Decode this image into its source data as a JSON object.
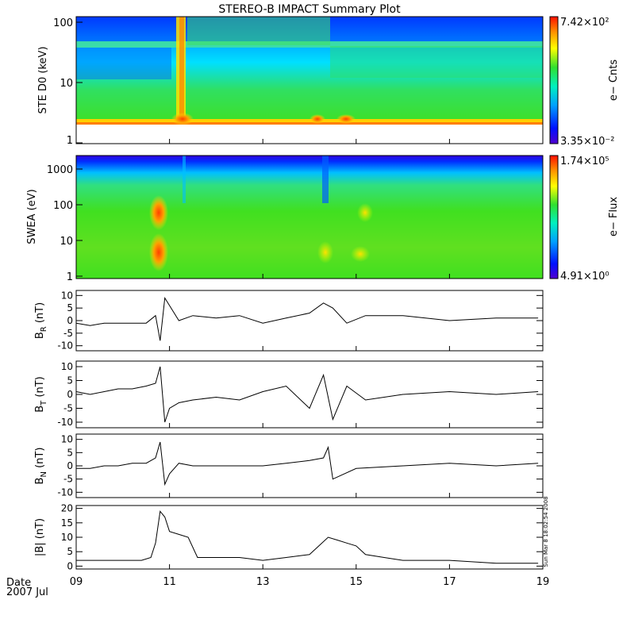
{
  "title": "STEREO-B IMPACT Summary Plot",
  "date_label": "Date",
  "date_sub": "2007 Jul",
  "side_stamp": "Sun Mar  8 18:02:54 2008",
  "chart_data": [
    {
      "type": "heatmap",
      "id": "ste",
      "ylabel": "STE D0 (keV)",
      "ylog": true,
      "ylim": [
        1,
        100
      ],
      "yticks": [
        "1",
        "10",
        "100"
      ],
      "cbar_max": "7.42×10²",
      "cbar_min": "3.35×10⁻²",
      "cbar_label": "e− Cnts"
    },
    {
      "type": "heatmap",
      "id": "swea",
      "ylabel": "SWEA (eV)",
      "ylog": true,
      "ylim": [
        1,
        2000
      ],
      "yticks": [
        "1",
        "10",
        "100",
        "1000"
      ],
      "cbar_max": "1.74×10⁵",
      "cbar_min": "4.91×10⁰",
      "cbar_label": "e− Flux"
    },
    {
      "type": "line",
      "id": "br",
      "ylabel": "B",
      "ylabel_sub": "R",
      "ylabel_unit": " (nT)",
      "ylim": [
        -12,
        12
      ],
      "yticks": [
        10,
        5,
        0,
        -5,
        -10
      ],
      "x": [
        9.0,
        9.3,
        9.6,
        9.9,
        10.2,
        10.5,
        10.7,
        10.8,
        10.9,
        11.0,
        11.2,
        11.5,
        12.0,
        12.5,
        13.0,
        13.5,
        14.0,
        14.3,
        14.5,
        14.8,
        15.2,
        16.0,
        17.0,
        18.0,
        18.9
      ],
      "y": [
        -1,
        -2,
        -1,
        -1,
        -1,
        -1,
        2,
        -8,
        9,
        6,
        0,
        2,
        1,
        2,
        -1,
        1,
        3,
        7,
        5,
        -1,
        2,
        2,
        0,
        1,
        1
      ]
    },
    {
      "type": "line",
      "id": "bt",
      "ylabel": "B",
      "ylabel_sub": "T",
      "ylabel_unit": " (nT)",
      "ylim": [
        -12,
        12
      ],
      "yticks": [
        10,
        5,
        0,
        -5,
        -10
      ],
      "x": [
        9.0,
        9.3,
        9.6,
        9.9,
        10.2,
        10.5,
        10.7,
        10.8,
        10.9,
        11.0,
        11.2,
        11.5,
        12.0,
        12.5,
        13.0,
        13.5,
        14.0,
        14.3,
        14.5,
        14.8,
        15.2,
        16.0,
        17.0,
        18.0,
        18.9
      ],
      "y": [
        1,
        0,
        1,
        2,
        2,
        3,
        4,
        10,
        -10,
        -5,
        -3,
        -2,
        -1,
        -2,
        1,
        3,
        -5,
        7,
        -9,
        3,
        -2,
        0,
        1,
        0,
        1
      ]
    },
    {
      "type": "line",
      "id": "bn",
      "ylabel": "B",
      "ylabel_sub": "N",
      "ylabel_unit": " (nT)",
      "ylim": [
        -12,
        12
      ],
      "yticks": [
        10,
        5,
        0,
        -5,
        -10
      ],
      "x": [
        9.0,
        9.3,
        9.6,
        9.9,
        10.2,
        10.5,
        10.7,
        10.8,
        10.9,
        11.0,
        11.2,
        11.5,
        12.0,
        12.5,
        13.0,
        13.5,
        14.0,
        14.3,
        14.4,
        14.5,
        15.0,
        16.0,
        17.0,
        18.0,
        18.9
      ],
      "y": [
        -1,
        -1,
        0,
        0,
        1,
        1,
        3,
        9,
        -7,
        -3,
        1,
        0,
        0,
        0,
        0,
        1,
        2,
        3,
        7,
        -5,
        -1,
        0,
        1,
        0,
        1
      ]
    },
    {
      "type": "line",
      "id": "bmag",
      "ylabel": "|B| (nT)",
      "ylim": [
        -1,
        21
      ],
      "yticks": [
        20,
        15,
        10,
        5,
        0
      ],
      "x": [
        9.0,
        9.5,
        10.0,
        10.4,
        10.6,
        10.7,
        10.8,
        10.9,
        11.0,
        11.2,
        11.4,
        11.6,
        12.0,
        12.5,
        13.0,
        13.5,
        14.0,
        14.2,
        14.4,
        14.6,
        14.8,
        15.0,
        15.2,
        15.6,
        16.0,
        16.5,
        17.0,
        18.0,
        18.9
      ],
      "y": [
        2,
        2,
        2,
        2,
        3,
        8,
        19,
        17,
        12,
        11,
        10,
        3,
        3,
        3,
        2,
        3,
        4,
        7,
        10,
        9,
        8,
        7,
        4,
        3,
        2,
        2,
        2,
        1,
        1
      ]
    }
  ],
  "x_axis": {
    "ticks": [
      "09",
      "11",
      "13",
      "15",
      "17",
      "19"
    ],
    "xlim": [
      9,
      19
    ]
  }
}
